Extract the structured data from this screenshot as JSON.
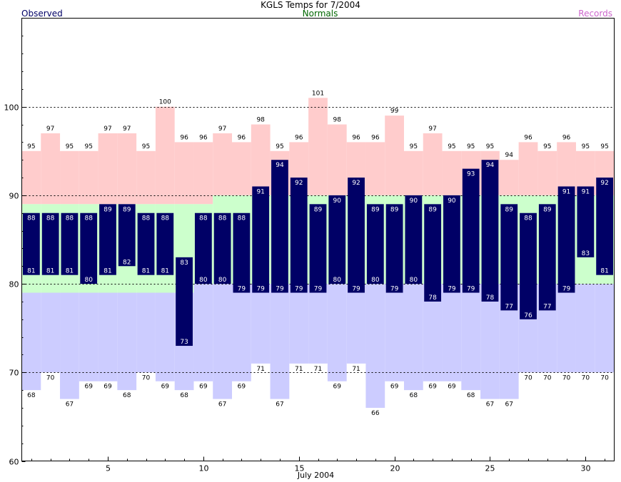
{
  "header": {
    "title": "KGLS Temps for 7/2004",
    "legend_observed": "Observed",
    "legend_normals": "Normals",
    "legend_records": "Records"
  },
  "colors": {
    "observed": "#000066",
    "observed_legend": "#000066",
    "normals_band": "#ccffcc",
    "normals_legend": "#006600",
    "record_high_band": "#ffcccc",
    "record_low_band": "#ccccff",
    "records_legend": "#cc66cc",
    "grid": "#000000"
  },
  "chart_data": {
    "type": "bar",
    "title": "KGLS Temps for 7/2004",
    "xlabel": "July 2004",
    "ylabel": "",
    "ylim": [
      60,
      110
    ],
    "xlim": [
      0.5,
      31.5
    ],
    "yticks": [
      60,
      70,
      80,
      90,
      100
    ],
    "xticks": [
      5,
      10,
      15,
      20,
      25,
      30
    ],
    "grid": "dashed horizontal at 70, 80, 90, 100",
    "days": [
      1,
      2,
      3,
      4,
      5,
      6,
      7,
      8,
      9,
      10,
      11,
      12,
      13,
      14,
      15,
      16,
      17,
      18,
      19,
      20,
      21,
      22,
      23,
      24,
      25,
      26,
      27,
      28,
      29,
      30,
      31
    ],
    "observed_high": [
      88,
      88,
      88,
      88,
      89,
      89,
      88,
      88,
      83,
      88,
      88,
      88,
      91,
      94,
      92,
      89,
      90,
      92,
      89,
      89,
      90,
      89,
      90,
      93,
      94,
      89,
      88,
      89,
      91,
      91,
      92
    ],
    "observed_low": [
      81,
      81,
      81,
      80,
      81,
      82,
      81,
      81,
      73,
      80,
      80,
      79,
      79,
      79,
      79,
      79,
      80,
      79,
      80,
      79,
      80,
      78,
      79,
      79,
      78,
      77,
      76,
      77,
      79,
      83,
      81
    ],
    "normal_high": [
      89,
      89,
      89,
      89,
      89,
      89,
      89,
      89,
      89,
      89,
      90,
      90,
      90,
      90,
      90,
      90,
      90,
      90,
      90,
      90,
      90,
      90,
      90,
      90,
      90,
      90,
      90,
      90,
      90,
      90,
      90
    ],
    "normal_low": [
      79,
      79,
      79,
      79,
      79,
      79,
      79,
      79,
      79,
      80,
      80,
      80,
      80,
      80,
      80,
      80,
      80,
      80,
      80,
      80,
      80,
      80,
      80,
      80,
      80,
      80,
      80,
      80,
      80,
      80,
      80
    ],
    "record_high": [
      95,
      97,
      95,
      95,
      97,
      97,
      95,
      100,
      96,
      96,
      97,
      96,
      98,
      95,
      96,
      101,
      98,
      96,
      96,
      99,
      95,
      97,
      95,
      95,
      95,
      94,
      96,
      95,
      96,
      95,
      95
    ],
    "record_low": [
      68,
      70,
      67,
      69,
      69,
      68,
      70,
      69,
      68,
      69,
      67,
      69,
      71,
      67,
      71,
      71,
      69,
      71,
      66,
      69,
      68,
      69,
      69,
      68,
      67,
      67,
      70,
      70,
      70,
      70,
      70
    ]
  }
}
